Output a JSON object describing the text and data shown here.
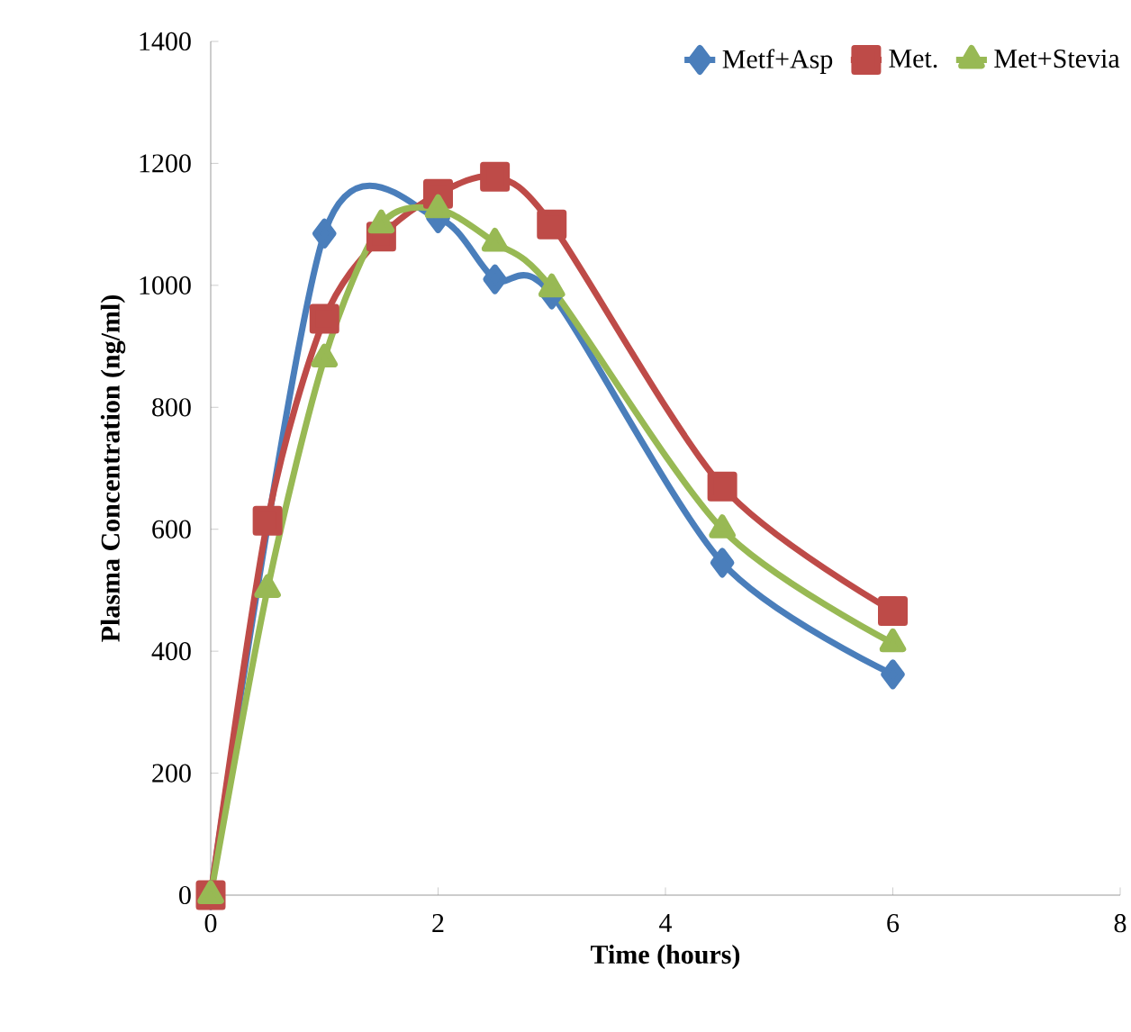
{
  "chart_data": {
    "type": "line",
    "xlabel": "Time (hours)",
    "ylabel": "Plasma Concentration (ng/ml)",
    "xlim": [
      0,
      8
    ],
    "xticks": [
      0,
      2,
      4,
      6,
      8
    ],
    "ylim": [
      0,
      1400
    ],
    "yticks": [
      0,
      200,
      400,
      600,
      800,
      1000,
      1200,
      1400
    ],
    "x": [
      0,
      0.5,
      1,
      1.5,
      2,
      2.5,
      3,
      4.5,
      6
    ],
    "legend": "top",
    "grid": false,
    "series": [
      {
        "name": "Metf+Asp",
        "color": "#4a7ebb",
        "marker": "diamond",
        "values": [
          0,
          null,
          1085,
          null,
          1110,
          1010,
          985,
          545,
          362
        ]
      },
      {
        "name": "Met.",
        "color": "#be4b48",
        "marker": "square",
        "values": [
          0,
          614,
          945,
          1080,
          1150,
          1178,
          1100,
          670,
          466
        ]
      },
      {
        "name": "Met+Stevia",
        "color": "#98b954",
        "marker": "triangle",
        "values": [
          0,
          502,
          880,
          1100,
          1125,
          1070,
          995,
          600,
          413
        ]
      }
    ]
  }
}
